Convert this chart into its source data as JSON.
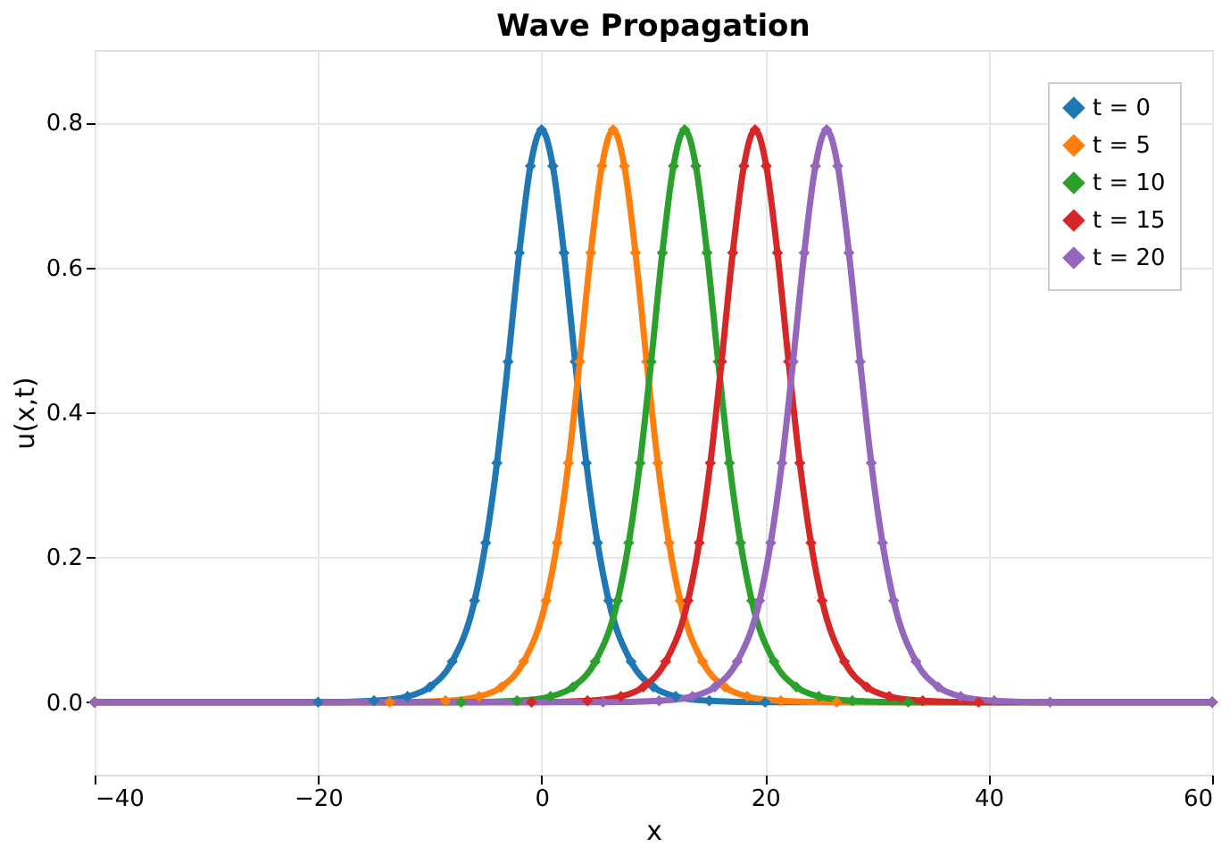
{
  "chart_data": {
    "type": "line",
    "title": "Wave Propagation",
    "xlabel": "x",
    "ylabel": "u(x,t)",
    "xlim": [
      -40,
      60
    ],
    "xticks": [
      -40,
      -20,
      0,
      20,
      40,
      60
    ],
    "ylim": [
      -0.1,
      0.9
    ],
    "yticks": [
      {
        "value": 0,
        "label": "0.0"
      },
      {
        "value": 0.2,
        "label": "0.2"
      },
      {
        "value": 0.4,
        "label": "0.4"
      },
      {
        "value": 0.6,
        "label": "0.6"
      },
      {
        "value": 0.8,
        "label": "0.8"
      }
    ],
    "grid": true,
    "legend": "top right",
    "marker": "diamond",
    "line_style": "solid",
    "series": [
      {
        "name": "t = 0",
        "color": "#1f77b4",
        "x": [
          -40,
          -20,
          -15,
          -12,
          -10,
          -8,
          -6,
          -5,
          -4,
          -3,
          -2,
          -1,
          0,
          1,
          2,
          3,
          4,
          5,
          6,
          8,
          10,
          12,
          15,
          20,
          60
        ],
        "values": [
          0,
          0,
          0.002,
          0.008,
          0.021,
          0.056,
          0.14,
          0.22,
          0.33,
          0.47,
          0.62,
          0.74,
          0.79,
          0.74,
          0.62,
          0.47,
          0.33,
          0.22,
          0.14,
          0.056,
          0.021,
          0.008,
          0.002,
          0,
          0
        ]
      },
      {
        "name": "t = 5",
        "color": "#ff7f0e",
        "x": [
          -40,
          -13.6,
          -8.6,
          -5.6,
          -3.6,
          -1.6,
          0.4,
          1.4,
          2.4,
          3.4,
          4.4,
          5.4,
          6.4,
          7.4,
          8.4,
          9.4,
          10.4,
          11.4,
          12.4,
          14.4,
          16.4,
          18.4,
          21.4,
          26.4,
          60
        ],
        "values": [
          0,
          0,
          0.002,
          0.008,
          0.021,
          0.056,
          0.14,
          0.22,
          0.33,
          0.47,
          0.62,
          0.74,
          0.79,
          0.74,
          0.62,
          0.47,
          0.33,
          0.22,
          0.14,
          0.056,
          0.021,
          0.008,
          0.002,
          0,
          0
        ]
      },
      {
        "name": "t = 10",
        "color": "#2ca02c",
        "x": [
          -40,
          -7.2,
          -2.2,
          0.8,
          2.8,
          4.8,
          6.8,
          7.8,
          8.8,
          9.8,
          10.8,
          11.8,
          12.8,
          13.8,
          14.8,
          15.8,
          16.8,
          17.8,
          18.8,
          20.8,
          22.8,
          24.8,
          27.8,
          32.8,
          60
        ],
        "values": [
          0,
          0,
          0.002,
          0.008,
          0.021,
          0.056,
          0.14,
          0.22,
          0.33,
          0.47,
          0.62,
          0.74,
          0.79,
          0.74,
          0.62,
          0.47,
          0.33,
          0.22,
          0.14,
          0.056,
          0.021,
          0.008,
          0.002,
          0,
          0
        ]
      },
      {
        "name": "t = 15",
        "color": "#d62728",
        "x": [
          -40,
          -0.9,
          4.1,
          7.1,
          9.1,
          11.1,
          13.1,
          14.1,
          15.1,
          16.1,
          17.1,
          18.1,
          19.1,
          20.1,
          21.1,
          22.1,
          23.1,
          24.1,
          25.1,
          27.1,
          29.1,
          31.1,
          34.1,
          39.1,
          60
        ],
        "values": [
          0,
          0,
          0.002,
          0.008,
          0.021,
          0.056,
          0.14,
          0.22,
          0.33,
          0.47,
          0.62,
          0.74,
          0.79,
          0.74,
          0.62,
          0.47,
          0.33,
          0.22,
          0.14,
          0.056,
          0.021,
          0.008,
          0.002,
          0,
          0
        ]
      },
      {
        "name": "t = 20",
        "color": "#9467bd",
        "x": [
          -40,
          5.5,
          10.5,
          13.5,
          15.5,
          17.5,
          19.5,
          20.5,
          21.5,
          22.5,
          23.5,
          24.5,
          25.5,
          26.5,
          27.5,
          28.5,
          29.5,
          30.5,
          31.5,
          33.5,
          35.5,
          37.5,
          40.5,
          45.5,
          60
        ],
        "values": [
          0,
          0,
          0.002,
          0.008,
          0.021,
          0.056,
          0.14,
          0.22,
          0.33,
          0.47,
          0.62,
          0.74,
          0.79,
          0.74,
          0.62,
          0.47,
          0.33,
          0.22,
          0.14,
          0.056,
          0.021,
          0.008,
          0.002,
          0,
          0
        ]
      }
    ]
  }
}
